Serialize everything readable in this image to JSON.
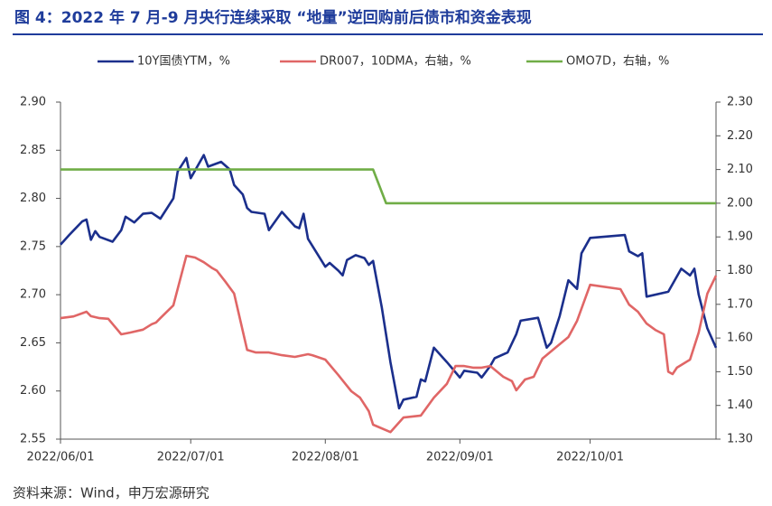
{
  "chart_data": {
    "type": "line",
    "title": "图 4：2022 年 7 月-9 月央行连续采取 “地量”逆回购前后债市和资金表现",
    "source": "资料来源：Wind，申万宏源研究",
    "xlim": [
      "2022-06-01",
      "2022-10-30"
    ],
    "xticks": [
      {
        "value": "2022-06-01",
        "label": "2022/06/01"
      },
      {
        "value": "2022-07-01",
        "label": "2022/07/01"
      },
      {
        "value": "2022-08-01",
        "label": "2022/08/01"
      },
      {
        "value": "2022-09-01",
        "label": "2022/09/01"
      },
      {
        "value": "2022-10-01",
        "label": "2022/10/01"
      }
    ],
    "ylim": [
      2.55,
      2.9
    ],
    "yticks": [
      2.55,
      {
        "value": 2.6,
        "label": "2.60"
      },
      2.65,
      {
        "value": 2.7,
        "label": "2.70"
      },
      2.75,
      {
        "value": 2.8,
        "label": "2.80"
      },
      2.85,
      {
        "value": 2.9,
        "label": "2.90"
      }
    ],
    "y2lim": [
      1.3,
      2.3
    ],
    "y2ticks": [
      {
        "value": 1.3,
        "label": "1.30"
      },
      {
        "value": 1.4,
        "label": "1.40"
      },
      {
        "value": 1.5,
        "label": "1.50"
      },
      {
        "value": 1.6,
        "label": "1.60"
      },
      {
        "value": 1.7,
        "label": "1.70"
      },
      {
        "value": 1.8,
        "label": "1.80"
      },
      {
        "value": 1.9,
        "label": "1.90"
      },
      {
        "value": 2.0,
        "label": "2.00"
      },
      {
        "value": 2.1,
        "label": "2.10"
      },
      {
        "value": 2.2,
        "label": "2.20"
      },
      {
        "value": 2.3,
        "label": "2.30"
      }
    ],
    "series": [
      {
        "name": "10Y国债YTM，%",
        "color": "#1b2f8c",
        "x": [
          "2022-06-01",
          "2022-06-03",
          "2022-06-06",
          "2022-06-07",
          "2022-06-08",
          "2022-06-09",
          "2022-06-10",
          "2022-06-13",
          "2022-06-15",
          "2022-06-16",
          "2022-06-18",
          "2022-06-20",
          "2022-06-22",
          "2022-06-24",
          "2022-06-27",
          "2022-06-28",
          "2022-06-30",
          "2022-07-01",
          "2022-07-04",
          "2022-07-05",
          "2022-07-08",
          "2022-07-10",
          "2022-07-11",
          "2022-07-13",
          "2022-07-14",
          "2022-07-15",
          "2022-07-18",
          "2022-07-19",
          "2022-07-22",
          "2022-07-25",
          "2022-07-26",
          "2022-07-27",
          "2022-07-28",
          "2022-08-01",
          "2022-08-02",
          "2022-08-04",
          "2022-08-05",
          "2022-08-06",
          "2022-08-08",
          "2022-08-10",
          "2022-08-11",
          "2022-08-12",
          "2022-08-14",
          "2022-08-16",
          "2022-08-18",
          "2022-08-19",
          "2022-08-22",
          "2022-08-23",
          "2022-08-24",
          "2022-08-26",
          "2022-08-29",
          "2022-09-01",
          "2022-09-02",
          "2022-09-05",
          "2022-09-06",
          "2022-09-08",
          "2022-09-09",
          "2022-09-12",
          "2022-09-14",
          "2022-09-15",
          "2022-09-19",
          "2022-09-21",
          "2022-09-22",
          "2022-09-24",
          "2022-09-26",
          "2022-09-28",
          "2022-09-29",
          "2022-10-01",
          "2022-10-09",
          "2022-10-10",
          "2022-10-12",
          "2022-10-13",
          "2022-10-14",
          "2022-10-19",
          "2022-10-22",
          "2022-10-24",
          "2022-10-25",
          "2022-10-26",
          "2022-10-28",
          "2022-10-30"
        ],
        "values": [
          2.752,
          2.762,
          2.776,
          2.778,
          2.757,
          2.766,
          2.76,
          2.755,
          2.767,
          2.781,
          2.775,
          2.784,
          2.785,
          2.779,
          2.8,
          2.828,
          2.842,
          2.821,
          2.845,
          2.833,
          2.838,
          2.83,
          2.814,
          2.804,
          2.79,
          2.786,
          2.784,
          2.767,
          2.786,
          2.771,
          2.769,
          2.784,
          2.758,
          2.729,
          2.733,
          2.725,
          2.72,
          2.736,
          2.741,
          2.738,
          2.731,
          2.735,
          2.687,
          2.63,
          2.582,
          2.591,
          2.594,
          2.612,
          2.61,
          2.645,
          2.63,
          2.614,
          2.621,
          2.619,
          2.614,
          2.626,
          2.634,
          2.64,
          2.659,
          2.673,
          2.676,
          2.645,
          2.65,
          2.678,
          2.715,
          2.706,
          2.743,
          2.759,
          2.762,
          2.745,
          2.74,
          2.743,
          2.698,
          2.703,
          2.727,
          2.72,
          2.727,
          2.7,
          2.665,
          2.645
        ]
      },
      {
        "name": "DR007，10DMA，右轴，%",
        "color": "#e06666",
        "axis": "y2",
        "x": [
          "2022-06-01",
          "2022-06-04",
          "2022-06-07",
          "2022-06-08",
          "2022-06-10",
          "2022-06-12",
          "2022-06-15",
          "2022-06-17",
          "2022-06-20",
          "2022-06-22",
          "2022-06-23",
          "2022-06-24",
          "2022-06-27",
          "2022-06-30",
          "2022-07-02",
          "2022-07-04",
          "2022-07-06",
          "2022-07-07",
          "2022-07-09",
          "2022-07-11",
          "2022-07-14",
          "2022-07-16",
          "2022-07-19",
          "2022-07-22",
          "2022-07-25",
          "2022-07-28",
          "2022-07-29",
          "2022-08-01",
          "2022-08-04",
          "2022-08-07",
          "2022-08-09",
          "2022-08-11",
          "2022-08-12",
          "2022-08-16",
          "2022-08-19",
          "2022-08-23",
          "2022-08-26",
          "2022-08-29",
          "2022-08-31",
          "2022-09-02",
          "2022-09-04",
          "2022-09-06",
          "2022-09-08",
          "2022-09-11",
          "2022-09-13",
          "2022-09-14",
          "2022-09-16",
          "2022-09-18",
          "2022-09-20",
          "2022-09-23",
          "2022-09-26",
          "2022-09-28",
          "2022-10-01",
          "2022-10-08",
          "2022-10-10",
          "2022-10-12",
          "2022-10-14",
          "2022-10-16",
          "2022-10-18",
          "2022-10-19",
          "2022-10-20",
          "2022-10-21",
          "2022-10-24",
          "2022-10-26",
          "2022-10-28",
          "2022-10-30"
        ],
        "values": [
          1.659,
          1.664,
          1.678,
          1.665,
          1.659,
          1.657,
          1.611,
          1.616,
          1.625,
          1.641,
          1.646,
          1.659,
          1.697,
          1.844,
          1.839,
          1.825,
          1.807,
          1.8,
          1.767,
          1.732,
          1.565,
          1.557,
          1.557,
          1.549,
          1.544,
          1.552,
          1.549,
          1.536,
          1.49,
          1.442,
          1.423,
          1.383,
          1.343,
          1.321,
          1.364,
          1.37,
          1.423,
          1.464,
          1.517,
          1.517,
          1.512,
          1.512,
          1.517,
          1.485,
          1.472,
          1.445,
          1.477,
          1.485,
          1.539,
          1.571,
          1.603,
          1.651,
          1.758,
          1.745,
          1.699,
          1.678,
          1.643,
          1.624,
          1.611,
          1.5,
          1.493,
          1.512,
          1.536,
          1.616,
          1.732,
          1.785
        ]
      },
      {
        "name": "OMO7D，右轴，%",
        "color": "#70ad47",
        "axis": "y2",
        "x": [
          "2022-06-01",
          "2022-08-12",
          "2022-08-15",
          "2022-10-30"
        ],
        "values": [
          2.1,
          2.1,
          2.0,
          2.0
        ]
      }
    ]
  }
}
